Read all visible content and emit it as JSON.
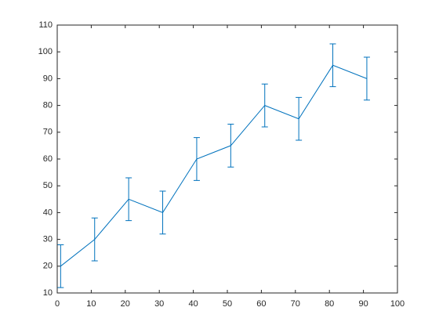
{
  "chart_data": {
    "type": "errorbar",
    "x": [
      1,
      11,
      21,
      31,
      41,
      51,
      61,
      71,
      81,
      91
    ],
    "values": [
      20,
      30,
      45,
      40,
      60,
      65,
      80,
      75,
      95,
      90
    ],
    "errors": [
      8,
      8,
      8,
      8,
      8,
      8,
      8,
      8,
      8,
      8
    ],
    "color": "#0072bd",
    "xlim": [
      0,
      100
    ],
    "xticks": [
      0,
      10,
      20,
      30,
      40,
      50,
      60,
      70,
      80,
      90,
      100
    ],
    "ylim": [
      10,
      110
    ],
    "yticks": [
      10,
      20,
      30,
      40,
      50,
      60,
      70,
      80,
      90,
      100,
      110
    ],
    "grid": false
  }
}
